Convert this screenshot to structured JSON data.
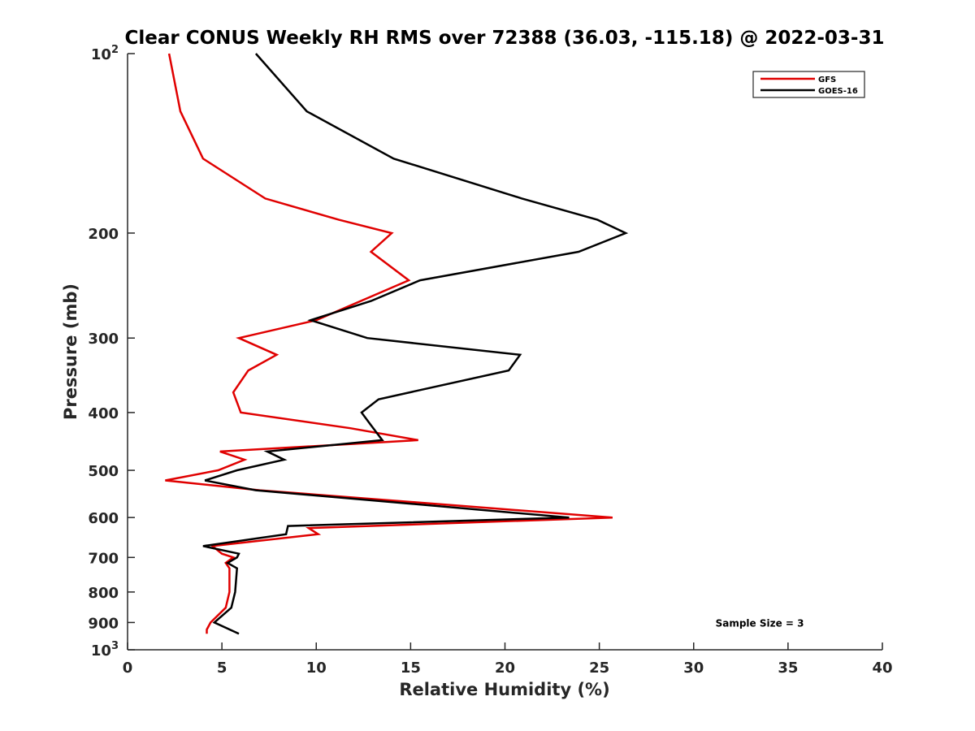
{
  "chart_data": {
    "type": "line",
    "title": "Clear CONUS Weekly RH RMS over 72388 (36.03, -115.18) @ 2022-03-31",
    "xlabel": "Relative Humidity (%)",
    "ylabel": "Pressure (mb)",
    "xlim": [
      0,
      40
    ],
    "ylim": [
      100,
      1000
    ],
    "yscale": "log",
    "y_reversed": true,
    "grid": false,
    "legend_position": "top-right",
    "x_ticks": [
      0,
      5,
      10,
      15,
      20,
      25,
      30,
      35,
      40
    ],
    "x_tick_labels": [
      "0",
      "5",
      "10",
      "15",
      "20",
      "25",
      "30",
      "35",
      "40"
    ],
    "y_ticks": [
      200,
      300,
      400,
      500,
      600,
      700,
      800,
      900
    ],
    "y_tick_labels": [
      "200",
      "300",
      "400",
      "500",
      "600",
      "700",
      "800",
      "900"
    ],
    "y_decade_labels": [
      {
        "value": 100,
        "base": "10",
        "exp": "2"
      },
      {
        "value": 1000,
        "base": "10",
        "exp": "3"
      }
    ],
    "series": [
      {
        "name": "GFS",
        "color": "#e00000",
        "points": [
          [
            2.2,
            100
          ],
          [
            2.8,
            125
          ],
          [
            4.0,
            150
          ],
          [
            7.3,
            175
          ],
          [
            11.2,
            190
          ],
          [
            14.0,
            200
          ],
          [
            12.9,
            215
          ],
          [
            14.9,
            240
          ],
          [
            10.0,
            280
          ],
          [
            5.9,
            300
          ],
          [
            7.9,
            320
          ],
          [
            6.4,
            340
          ],
          [
            5.6,
            370
          ],
          [
            6.0,
            400
          ],
          [
            11.8,
            425
          ],
          [
            15.4,
            445
          ],
          [
            4.9,
            465
          ],
          [
            6.2,
            480
          ],
          [
            4.8,
            500
          ],
          [
            2.0,
            520
          ],
          [
            7.0,
            540
          ],
          [
            25.7,
            600
          ],
          [
            9.6,
            625
          ],
          [
            10.1,
            640
          ],
          [
            4.5,
            670
          ],
          [
            5.0,
            690
          ],
          [
            5.6,
            700
          ],
          [
            5.2,
            715
          ],
          [
            5.4,
            730
          ],
          [
            5.4,
            800
          ],
          [
            5.2,
            850
          ],
          [
            4.4,
            900
          ],
          [
            4.2,
            925
          ],
          [
            4.2,
            940
          ]
        ]
      },
      {
        "name": "GOES-16",
        "color": "#000000",
        "points": [
          [
            6.8,
            100
          ],
          [
            9.5,
            125
          ],
          [
            14.1,
            150
          ],
          [
            20.9,
            175
          ],
          [
            24.9,
            190
          ],
          [
            26.4,
            200
          ],
          [
            23.9,
            215
          ],
          [
            15.5,
            240
          ],
          [
            12.9,
            260
          ],
          [
            9.7,
            280
          ],
          [
            12.7,
            300
          ],
          [
            20.8,
            320
          ],
          [
            20.2,
            340
          ],
          [
            13.3,
            380
          ],
          [
            12.4,
            400
          ],
          [
            12.9,
            420
          ],
          [
            13.5,
            445
          ],
          [
            7.4,
            465
          ],
          [
            8.3,
            480
          ],
          [
            5.8,
            500
          ],
          [
            4.1,
            520
          ],
          [
            6.8,
            540
          ],
          [
            23.4,
            600
          ],
          [
            8.5,
            620
          ],
          [
            8.4,
            640
          ],
          [
            4.0,
            670
          ],
          [
            5.9,
            690
          ],
          [
            5.8,
            700
          ],
          [
            5.3,
            715
          ],
          [
            5.8,
            730
          ],
          [
            5.7,
            800
          ],
          [
            5.5,
            850
          ],
          [
            4.6,
            900
          ],
          [
            5.9,
            940
          ]
        ]
      }
    ],
    "annotations": [
      {
        "text": "Sample Size = 3",
        "x": 33.5,
        "y": 900
      }
    ]
  }
}
